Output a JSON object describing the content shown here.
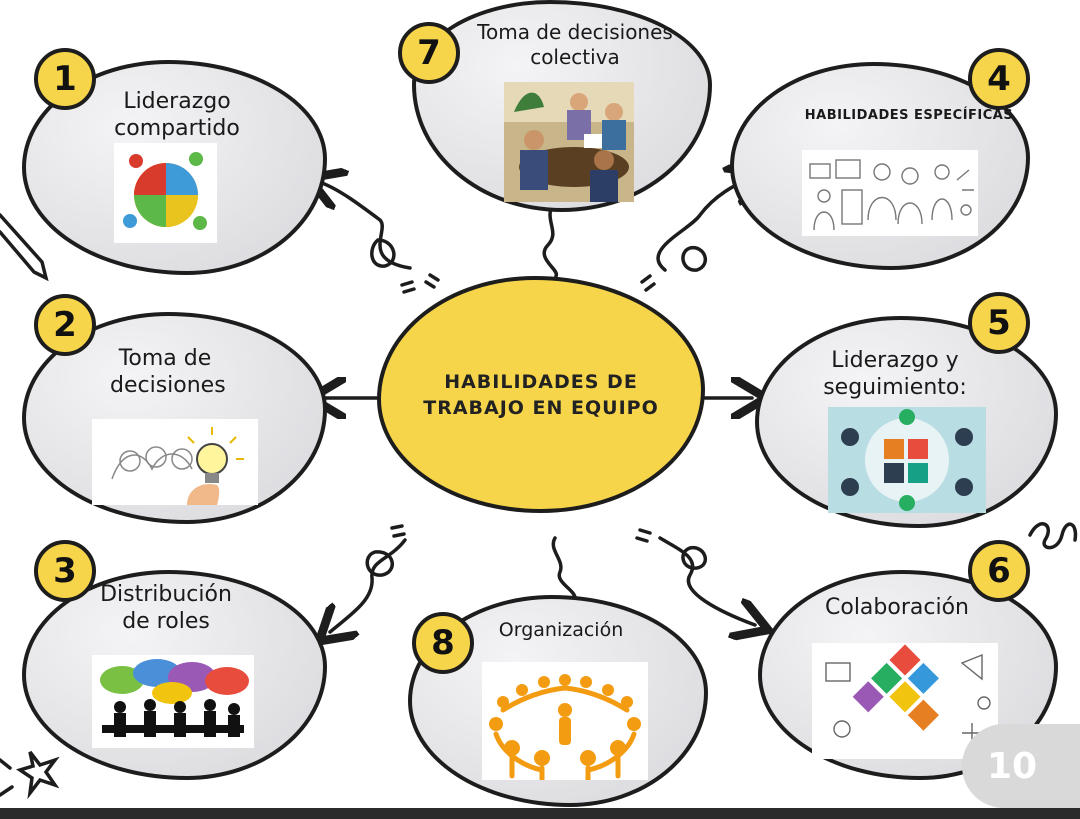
{
  "center": {
    "title": "HABILIDADES DE TRABAJO EN EQUIPO"
  },
  "nodes": [
    {
      "number": "1",
      "label": "Liderazgo compartido",
      "icon": "puzzle-people-icon"
    },
    {
      "number": "2",
      "label": "Toma de decisiones",
      "icon": "lightbulb-idea-icon"
    },
    {
      "number": "3",
      "label": "Distribución de roles",
      "icon": "speech-bubbles-team-icon"
    },
    {
      "number": "4",
      "label": "HABILIDADES ESPECÍFICAS",
      "icon": "team-sketch-icon"
    },
    {
      "number": "5",
      "label": "Liderazgo y seguimiento:",
      "icon": "hands-puzzle-icon"
    },
    {
      "number": "6",
      "label": "Colaboración",
      "icon": "linked-hands-icon"
    },
    {
      "number": "7",
      "label": "Toma de decisiones colectiva",
      "icon": "meeting-icon"
    },
    {
      "number": "8",
      "label": "Organización",
      "icon": "circle-of-people-icon"
    }
  ],
  "page_number": "10",
  "colors": {
    "accent_yellow": "#f7d54a",
    "bubble_gray": "#e4e4e7",
    "outline": "#1d1d1d"
  }
}
